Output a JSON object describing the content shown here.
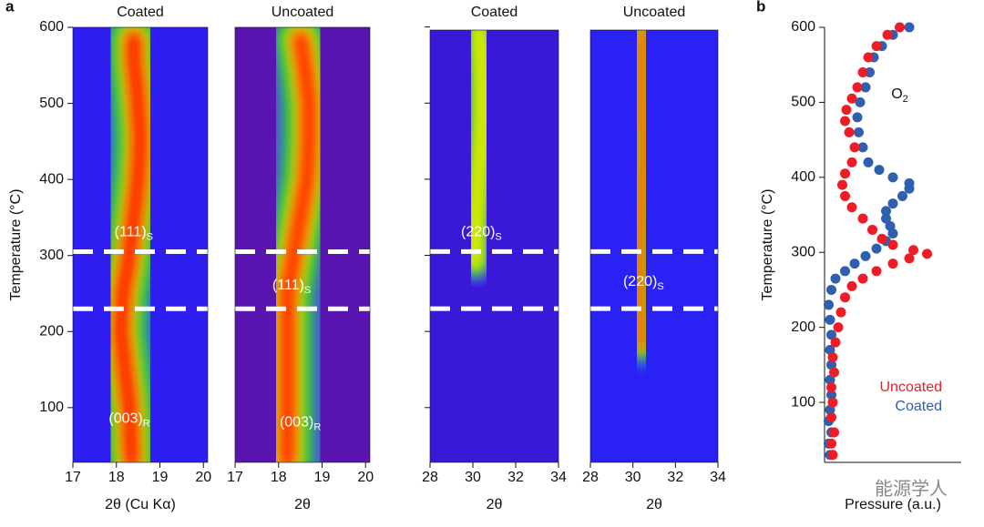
{
  "panel_labels": [
    "a",
    "b"
  ],
  "watermark": "能源学人",
  "chart_data": [
    {
      "type": "heatmap",
      "title": "Coated",
      "xlabel": "2θ (Cu Kα)",
      "ylabel": "Temperature (°C)",
      "xlim": [
        17,
        20.1
      ],
      "xticks": [
        17,
        18,
        19,
        20
      ],
      "ylim": [
        28,
        600
      ],
      "yticks": [
        100,
        200,
        300,
        400,
        500,
        600
      ],
      "background": "#2f1ef2",
      "core_color": "#ff1a00",
      "peak_2theta": [
        18.35,
        18.3,
        18.2,
        18.1,
        18.15,
        18.3,
        18.4,
        18.5,
        18.55,
        18.5,
        18.4,
        18.4
      ],
      "temperature": [
        30,
        100,
        150,
        200,
        250,
        300,
        350,
        400,
        450,
        500,
        560,
        585
      ],
      "hlines": [
        305,
        230
      ],
      "annotations": [
        {
          "text": "(111)",
          "sub": "S",
          "x": 18.4,
          "y": 330
        },
        {
          "text": "(003)",
          "sub": "R",
          "x": 18.3,
          "y": 85
        }
      ]
    },
    {
      "type": "heatmap",
      "title": "Uncoated",
      "xlabel": "2θ",
      "xlim": [
        17,
        20.1
      ],
      "xticks": [
        17,
        18,
        19,
        20
      ],
      "ylim": [
        28,
        600
      ],
      "background": "#5a14b0",
      "core_color": "#ff2a00",
      "peak_2theta": [
        18.2,
        18.2,
        18.2,
        18.2,
        18.35,
        18.5,
        18.65,
        18.7,
        18.7,
        18.6,
        18.5
      ],
      "temperature": [
        30,
        100,
        200,
        250,
        300,
        350,
        400,
        450,
        500,
        550,
        585
      ],
      "hlines": [
        305,
        230
      ],
      "annotations": [
        {
          "text": "(111)",
          "sub": "S",
          "x": 18.3,
          "y": 260
        },
        {
          "text": "(003)",
          "sub": "R",
          "x": 18.5,
          "y": 80
        }
      ]
    },
    {
      "type": "heatmap",
      "title": "Coated",
      "xlabel": "2θ",
      "xlim": [
        28,
        34
      ],
      "xticks": [
        28,
        30,
        32,
        34
      ],
      "ylim": [
        28,
        596
      ],
      "yticks": [
        100,
        200,
        300,
        400,
        500,
        600
      ],
      "show_ytick_labels": false,
      "background": "#3a18d8",
      "core_color": "#d8e400",
      "peak_2theta": [
        30.1,
        30.1,
        30.25,
        30.4,
        30.45,
        30.4,
        30.3
      ],
      "temperature": [
        290,
        330,
        400,
        450,
        500,
        550,
        595
      ],
      "hlines": [
        305,
        230
      ],
      "annotations": [
        {
          "text": "(220)",
          "sub": "S",
          "x": 30.4,
          "y": 330
        }
      ]
    },
    {
      "type": "heatmap",
      "title": "Uncoated",
      "xlabel": "2θ",
      "xlim": [
        28,
        34
      ],
      "xticks": [
        28,
        30,
        32,
        34
      ],
      "ylim": [
        28,
        596
      ],
      "background": "#2a22f4",
      "core_color": "#ff2000",
      "peak_2theta": [
        30.4,
        30.3,
        30.3,
        30.45,
        30.5,
        30.4,
        30.4,
        30.5
      ],
      "temperature": [
        180,
        250,
        320,
        400,
        450,
        500,
        550,
        595
      ],
      "hlines": [
        305,
        230
      ],
      "annotations": [
        {
          "text": "(220)",
          "sub": "S",
          "x": 30.5,
          "y": 265
        }
      ]
    },
    {
      "type": "scatter",
      "xlabel": "Pressure (a.u.)",
      "ylabel": "Temperature (°C)",
      "xlim": [
        0,
        1
      ],
      "ylim": [
        20,
        600
      ],
      "yticks": [
        100,
        200,
        300,
        400,
        500,
        600
      ],
      "annotations": [
        {
          "text": "O",
          "sub": "2",
          "x": 0.55,
          "y": 510
        }
      ],
      "series": [
        {
          "name": "Coated",
          "color": "#2f5fb0",
          "x": [
            0.04,
            0.03,
            0.05,
            0.03,
            0.04,
            0.05,
            0.04,
            0.05,
            0.04,
            0.05,
            0.04,
            0.03,
            0.05,
            0.08,
            0.15,
            0.22,
            0.3,
            0.38,
            0.45,
            0.5,
            0.48,
            0.45,
            0.45,
            0.5,
            0.57,
            0.62,
            0.62,
            0.5,
            0.4,
            0.32,
            0.28,
            0.25,
            0.24,
            0.26,
            0.3,
            0.33,
            0.36,
            0.42,
            0.5,
            0.62
          ],
          "y": [
            30,
            45,
            60,
            75,
            90,
            110,
            130,
            150,
            170,
            190,
            210,
            230,
            250,
            265,
            275,
            285,
            295,
            305,
            315,
            325,
            335,
            345,
            355,
            365,
            375,
            385,
            392,
            400,
            410,
            420,
            440,
            460,
            480,
            500,
            520,
            540,
            560,
            575,
            590,
            600
          ]
        },
        {
          "name": "Uncoated",
          "color": "#ee1c24",
          "x": [
            0.06,
            0.05,
            0.07,
            0.05,
            0.06,
            0.05,
            0.07,
            0.06,
            0.08,
            0.1,
            0.12,
            0.15,
            0.2,
            0.28,
            0.38,
            0.5,
            0.62,
            0.75,
            0.65,
            0.5,
            0.42,
            0.35,
            0.28,
            0.2,
            0.15,
            0.13,
            0.15,
            0.2,
            0.22,
            0.18,
            0.15,
            0.16,
            0.2,
            0.24,
            0.28,
            0.32,
            0.38,
            0.46,
            0.55
          ],
          "y": [
            30,
            45,
            60,
            80,
            100,
            120,
            140,
            160,
            180,
            200,
            220,
            240,
            255,
            265,
            275,
            285,
            292,
            298,
            303,
            310,
            318,
            330,
            345,
            360,
            375,
            390,
            405,
            420,
            440,
            460,
            475,
            490,
            505,
            520,
            540,
            560,
            575,
            590,
            600
          ]
        }
      ]
    }
  ]
}
